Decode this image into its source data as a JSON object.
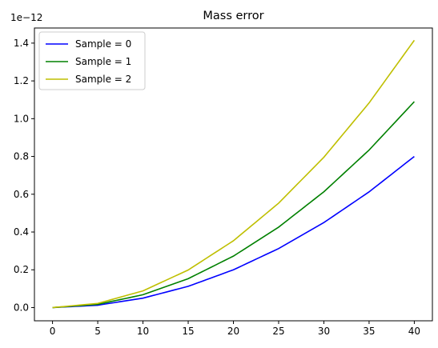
{
  "chart_data": {
    "type": "line",
    "title": "Mass error",
    "xlabel": "",
    "ylabel": "",
    "y_scale_label": "1e−12",
    "xlim": [
      -2,
      42
    ],
    "ylim": [
      -0.07,
      1.48
    ],
    "x_ticks": [
      0,
      5,
      10,
      15,
      20,
      25,
      30,
      35,
      40
    ],
    "x_tick_labels": [
      "0",
      "5",
      "10",
      "15",
      "20",
      "25",
      "30",
      "35",
      "40"
    ],
    "y_ticks": [
      0.0,
      0.2,
      0.4,
      0.6,
      0.8,
      1.0,
      1.2,
      1.4
    ],
    "y_tick_labels": [
      "0.0",
      "0.2",
      "0.4",
      "0.6",
      "0.8",
      "1.0",
      "1.2",
      "1.4"
    ],
    "grid": false,
    "legend_position": "top-left",
    "x": [
      0,
      5,
      10,
      15,
      20,
      25,
      30,
      35,
      40
    ],
    "series": [
      {
        "name": "Sample = 0",
        "color": "#0000ff",
        "values": [
          0.0,
          0.0125,
          0.05,
          0.1125,
          0.2,
          0.3125,
          0.45,
          0.6125,
          0.8
        ]
      },
      {
        "name": "Sample = 1",
        "color": "#008000",
        "values": [
          0.0,
          0.017,
          0.068,
          0.153,
          0.2725,
          0.4258,
          0.613,
          0.834,
          1.09
        ]
      },
      {
        "name": "Sample = 2",
        "color": "#bfbf00",
        "values": [
          0.0,
          0.0221,
          0.0884,
          0.1989,
          0.3537,
          0.5527,
          0.7959,
          1.0833,
          1.415
        ]
      }
    ]
  }
}
